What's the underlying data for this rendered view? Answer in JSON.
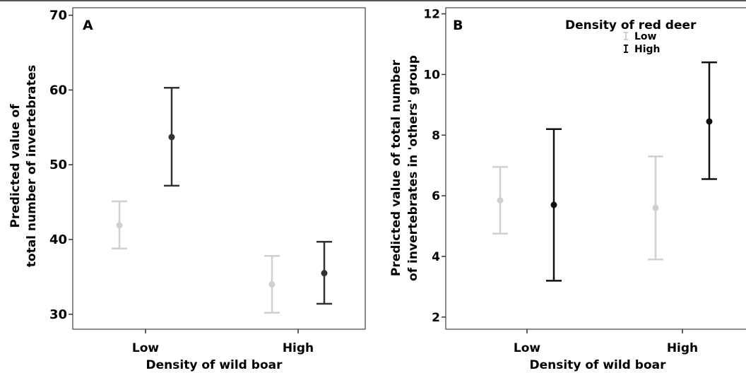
{
  "chart_data": [
    {
      "type": "scatter",
      "panel_label": "A",
      "title": "",
      "xlabel": "Density of wild boar",
      "ylabel_lines": [
        "Predicted value of",
        "total number of invertebrates"
      ],
      "categories": [
        "Low",
        "High"
      ],
      "ylim": [
        28,
        71
      ],
      "yticks": [
        30,
        40,
        50,
        60,
        70
      ],
      "grid": false,
      "legend": false,
      "series": [
        {
          "name": "Low",
          "color": "#cfcfcf",
          "values": [
            41.9,
            34.0
          ],
          "lower": [
            38.8,
            30.2
          ],
          "upper": [
            45.1,
            37.8
          ]
        },
        {
          "name": "High",
          "color": "#333333",
          "values": [
            53.7,
            35.5
          ],
          "lower": [
            47.2,
            31.4
          ],
          "upper": [
            60.3,
            39.7
          ]
        }
      ]
    },
    {
      "type": "scatter",
      "panel_label": "B",
      "title": "",
      "xlabel": "Density of wild boar",
      "ylabel_lines": [
        "Predicted value of total number",
        "of invertebrates in 'others' group"
      ],
      "categories": [
        "Low",
        "High"
      ],
      "ylim": [
        1.6,
        12.2
      ],
      "yticks": [
        2,
        4,
        6,
        8,
        10,
        12
      ],
      "grid": false,
      "legend": {
        "title": "Density of red deer",
        "entries": [
          "Low",
          "High"
        ],
        "placement": "top-right"
      },
      "series": [
        {
          "name": "Low",
          "color": "#d0d0d0",
          "values": [
            5.85,
            5.6
          ],
          "lower": [
            4.75,
            3.9
          ],
          "upper": [
            6.95,
            7.3
          ]
        },
        {
          "name": "High",
          "color": "#111111",
          "values": [
            5.7,
            8.45
          ],
          "lower": [
            3.2,
            6.55
          ],
          "upper": [
            8.2,
            10.4
          ]
        }
      ]
    }
  ]
}
